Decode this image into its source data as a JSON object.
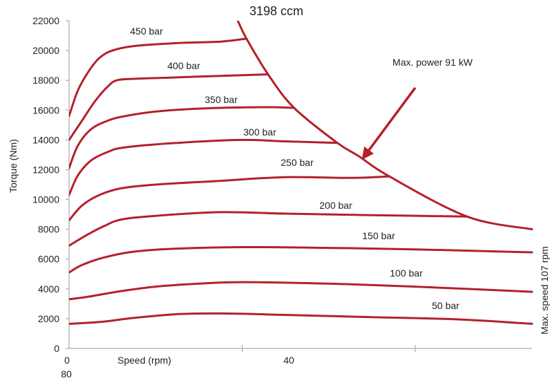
{
  "chart_data": {
    "type": "line",
    "title": "3198 ccm",
    "xlabel": "Speed (rpm)",
    "ylabel": "Torque (Nm)",
    "xlim": [
      0,
      107
    ],
    "ylim": [
      0,
      22000
    ],
    "x_ticks": [
      0,
      40,
      80
    ],
    "x_tick_labels": [
      "0",
      "40",
      "80"
    ],
    "y_ticks": [
      0,
      2000,
      4000,
      6000,
      8000,
      10000,
      12000,
      14000,
      16000,
      18000,
      20000,
      22000
    ],
    "grid": false,
    "colors": {
      "curve": "#b5202a",
      "axis": "#999999",
      "text": "#222222"
    },
    "series": [
      {
        "name": "450 bar",
        "x": [
          0,
          2,
          4.5,
          7,
          10,
          15,
          25,
          35,
          41
        ],
        "y": [
          15600,
          17300,
          18600,
          19500,
          20000,
          20300,
          20500,
          20600,
          20800
        ]
      },
      {
        "name": "400 bar",
        "x": [
          0,
          3,
          6,
          9,
          11,
          15,
          25,
          35,
          46
        ],
        "y": [
          14000,
          15300,
          16600,
          17600,
          18000,
          18100,
          18200,
          18300,
          18400
        ]
      },
      {
        "name": "350 bar",
        "x": [
          0,
          2,
          5,
          9,
          13,
          20,
          30,
          45,
          52
        ],
        "y": [
          12100,
          13600,
          14700,
          15300,
          15600,
          15900,
          16100,
          16200,
          16150
        ]
      },
      {
        "name": "300 bar",
        "x": [
          0,
          2,
          5,
          9,
          13,
          25,
          40,
          50,
          62
        ],
        "y": [
          10300,
          11600,
          12600,
          13200,
          13500,
          13800,
          14000,
          13900,
          13800
        ]
      },
      {
        "name": "250 bar",
        "x": [
          0,
          3,
          7,
          12,
          20,
          35,
          50,
          65,
          74
        ],
        "y": [
          8600,
          9600,
          10300,
          10750,
          11000,
          11250,
          11500,
          11450,
          11550
        ]
      },
      {
        "name": "200 bar",
        "x": [
          0,
          4,
          8,
          12,
          20,
          35,
          50,
          70,
          92
        ],
        "y": [
          6900,
          7600,
          8200,
          8650,
          8900,
          9150,
          9050,
          8950,
          8850
        ]
      },
      {
        "name": "150 bar",
        "x": [
          0,
          3,
          8,
          15,
          25,
          40,
          60,
          80,
          107
        ],
        "y": [
          5100,
          5600,
          6100,
          6500,
          6700,
          6800,
          6750,
          6650,
          6450
        ]
      },
      {
        "name": "100 bar",
        "x": [
          0,
          5,
          12,
          20,
          30,
          40,
          60,
          80,
          107
        ],
        "y": [
          3300,
          3500,
          3850,
          4150,
          4350,
          4450,
          4350,
          4150,
          3800
        ]
      },
      {
        "name": "50 bar",
        "x": [
          0,
          8,
          15,
          25,
          35,
          50,
          70,
          90,
          107
        ],
        "y": [
          1650,
          1800,
          2050,
          2300,
          2350,
          2250,
          2100,
          1950,
          1650
        ]
      },
      {
        "name": "Max. power 91 kW",
        "x": [
          39,
          41,
          46,
          52,
          62,
          67,
          74,
          92,
          107
        ],
        "y": [
          22000,
          20800,
          18400,
          16150,
          13800,
          12900,
          11550,
          8850,
          8000
        ]
      }
    ],
    "annotations": {
      "power_label": "Max. power 91 kW",
      "max_speed_label": "Max. speed 107 rpm",
      "arrow_from": [
        80,
        17500
      ],
      "arrow_to": [
        68,
        12800
      ]
    }
  }
}
